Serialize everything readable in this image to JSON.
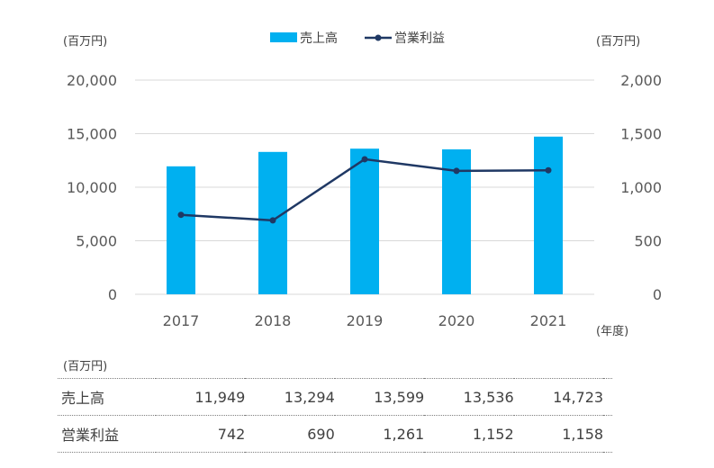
{
  "chart_data": {
    "type": "bar+line",
    "categories": [
      "2017",
      "2018",
      "2019",
      "2020",
      "2021"
    ],
    "series": [
      {
        "name": "売上高",
        "type": "bar",
        "axis": "left",
        "color": "#00B0F0",
        "values": [
          11949,
          13294,
          13599,
          13536,
          14723
        ]
      },
      {
        "name": "営業利益",
        "type": "line",
        "axis": "right",
        "color": "#1F3864",
        "values": [
          742,
          690,
          1261,
          1152,
          1158
        ]
      }
    ],
    "y_left": {
      "unit": "(百万円)",
      "ylim": [
        0,
        20000
      ],
      "ticks": [
        "0",
        "5,000",
        "10,000",
        "15,000",
        "20,000"
      ]
    },
    "y_right": {
      "unit": "(百万円)",
      "ylim": [
        0,
        2000
      ],
      "ticks": [
        "0",
        "500",
        "1,000",
        "1,500",
        "2,000"
      ]
    },
    "x_unit": "(年度)",
    "legend_position": "top-center",
    "grid": true
  },
  "table": {
    "unit": "(百万円)",
    "rows": [
      {
        "label": "売上高",
        "values": [
          "11,949",
          "13,294",
          "13,599",
          "13,536",
          "14,723"
        ]
      },
      {
        "label": "営業利益",
        "values": [
          "742",
          "690",
          "1,261",
          "1,152",
          "1,158"
        ]
      }
    ]
  }
}
